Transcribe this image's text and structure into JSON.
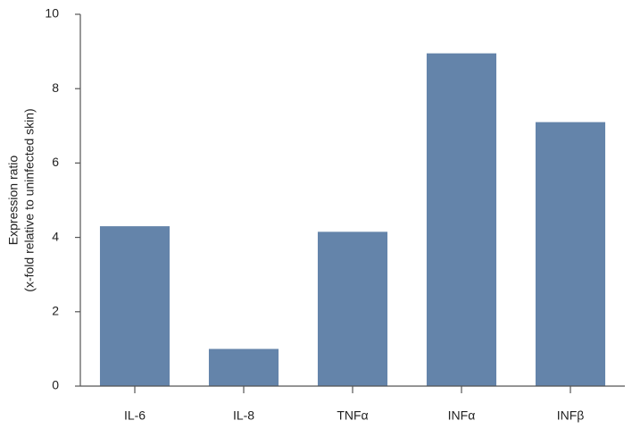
{
  "chart_data": {
    "type": "bar",
    "ylabel": [
      "Expression ratio",
      "(x-fold relative to uninfected skin)"
    ],
    "categories": [
      "IL-6",
      "IL-8",
      "TNFα",
      "INFα",
      "INFβ"
    ],
    "values": [
      4.3,
      1.0,
      4.15,
      8.95,
      7.1
    ],
    "color": "#6484aa",
    "ylim": [
      0,
      10
    ],
    "yticks": [
      0,
      2,
      4,
      6,
      8,
      10
    ],
    "grid": false
  }
}
